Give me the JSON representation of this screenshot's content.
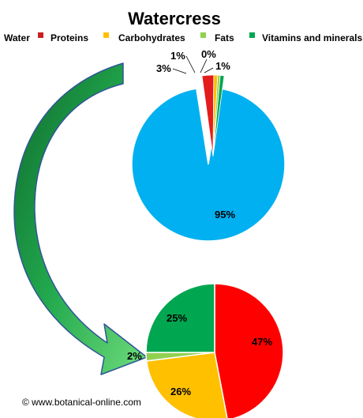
{
  "chart_data": [
    {
      "type": "pie",
      "title": "Watercress",
      "labels": [
        "Water",
        "Proteins",
        "Carbohydrates",
        "Fats",
        "Vitamins and minerals"
      ],
      "values": [
        95,
        3,
        1,
        0,
        1
      ],
      "display_labels": [
        "95%",
        "3%",
        "1%",
        "0%",
        "1%"
      ],
      "colors": [
        "#00b0f0",
        "#e51c1c",
        "#ffc000",
        "#92d050",
        "#00a650"
      ],
      "exploded": "Proteins, Carbohydrates, Fats, Vitamins and minerals",
      "legend": "top"
    },
    {
      "type": "pie",
      "labels": [
        "Proteins",
        "Carbohydrates",
        "Fats",
        "Vitamins and minerals"
      ],
      "values": [
        47,
        26,
        2,
        25
      ],
      "display_labels": [
        "47%",
        "26%",
        "2%",
        "25%"
      ],
      "colors": [
        "#ff0000",
        "#ffc000",
        "#92d050",
        "#00a650"
      ]
    }
  ],
  "legend_items": [
    {
      "label": "Water",
      "color": "#00b0f0",
      "show_swatch": false
    },
    {
      "label": "Proteins",
      "color": "#cc1f1f",
      "show_swatch": true
    },
    {
      "label": "Carbohydrates",
      "color": "#ffc000",
      "show_swatch": true
    },
    {
      "label": "Fats",
      "color": "#92d050",
      "show_swatch": true
    },
    {
      "label": "Vitamins and minerals",
      "color": "#00a650",
      "show_swatch": true
    }
  ],
  "credit": "© www.botanical-online.com",
  "arrow_color": "#1f9a45"
}
